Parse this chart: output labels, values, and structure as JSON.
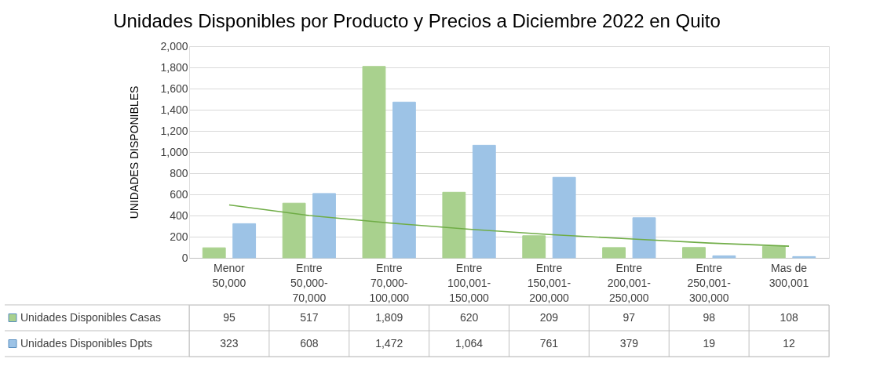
{
  "chart_data": {
    "type": "bar",
    "title": "Unidades Disponibles por Producto y Precios a Diciembre 2022 en Quito",
    "ylabel": "UNIDADES DISPONIBLES",
    "categories": [
      "Menor 50,000",
      "Entre 50,000-70,000",
      "Entre 70,000-100,000",
      "Entre 100,001-150,000",
      "Entre 150,001-200,000",
      "Entre 200,001-250,000",
      "Entre 250,001-300,000",
      "Mas de 300,001"
    ],
    "series": [
      {
        "name": "Unidades Disponibles Casas",
        "color": "#a9d18e",
        "values": [
          95,
          517,
          1809,
          620,
          209,
          97,
          98,
          108
        ],
        "value_labels": [
          "95",
          "517",
          "1,809",
          "620",
          "209",
          "97",
          "98",
          "108"
        ]
      },
      {
        "name": "Unidades Disponibles Dpts",
        "color": "#9dc3e6",
        "values": [
          323,
          608,
          1472,
          1064,
          761,
          379,
          19,
          12
        ],
        "value_labels": [
          "323",
          "608",
          "1,472",
          "1,064",
          "761",
          "379",
          "19",
          "12"
        ]
      },
      {
        "type": "line",
        "color": "#70ad47",
        "values": [
          500,
          400,
          330,
          270,
          220,
          180,
          140,
          110
        ]
      }
    ],
    "ylim": [
      0,
      2000
    ],
    "yticks": [
      0,
      200,
      400,
      600,
      800,
      {
        "value": 1000,
        "label": "1,000"
      },
      {
        "value": 1200,
        "label": "1,200"
      },
      {
        "value": 1400,
        "label": "1,400"
      },
      {
        "value": 1600,
        "label": "1,600"
      },
      {
        "value": 1800,
        "label": "1,800"
      },
      {
        "value": 2000,
        "label": "2,000"
      }
    ],
    "grid": "y",
    "legend": "bottom left"
  }
}
